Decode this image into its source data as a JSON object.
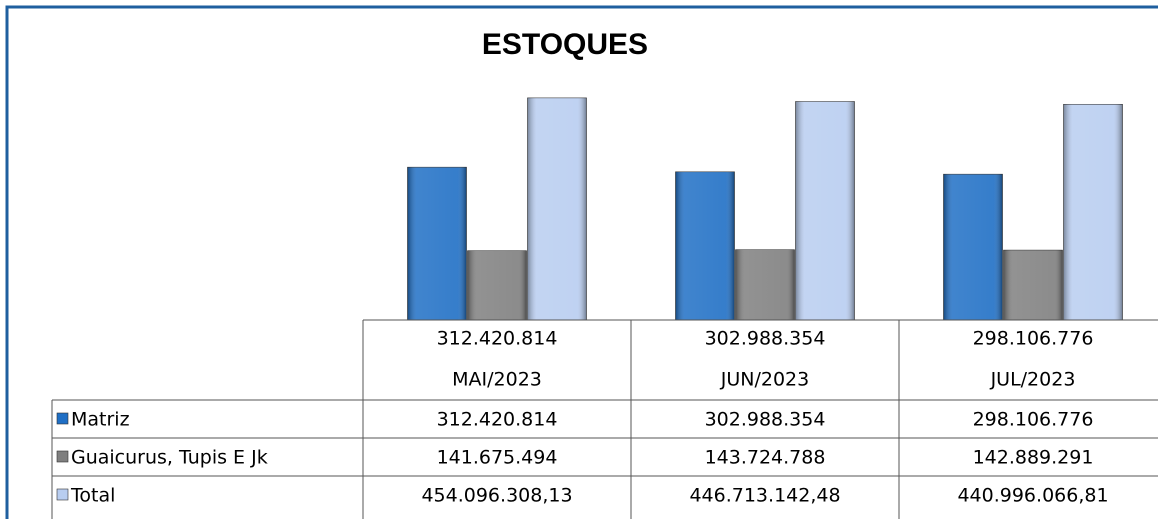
{
  "chart_data": {
    "type": "bar",
    "title": "ESTOQUES",
    "categories": [
      "MAI/2023",
      "JUN/2023",
      "JUL/2023"
    ],
    "category_values": [
      "312.420.814",
      "302.988.354",
      "298.106.776"
    ],
    "series": [
      {
        "name": "Matriz",
        "color": "#1f6fc5",
        "values": [
          312420814,
          302988354,
          298106776
        ],
        "value_labels": [
          "312.420.814",
          "302.988.354",
          "298.106.776"
        ]
      },
      {
        "name": "Guaicurus, Tupis E Jk",
        "color": "#7f7f7f",
        "values": [
          141675494,
          143724788,
          142889291
        ],
        "value_labels": [
          "141.675.494",
          "143.724.788",
          "142.889.291"
        ]
      },
      {
        "name": "Total",
        "color": "#b8cdf0",
        "values": [
          454096308.13,
          446713142.48,
          440996066.81
        ],
        "value_labels": [
          "454.096.308,13",
          "446.713.142,48",
          "440.996.066,81"
        ]
      }
    ],
    "ylim": [
      0,
      460000000
    ]
  }
}
